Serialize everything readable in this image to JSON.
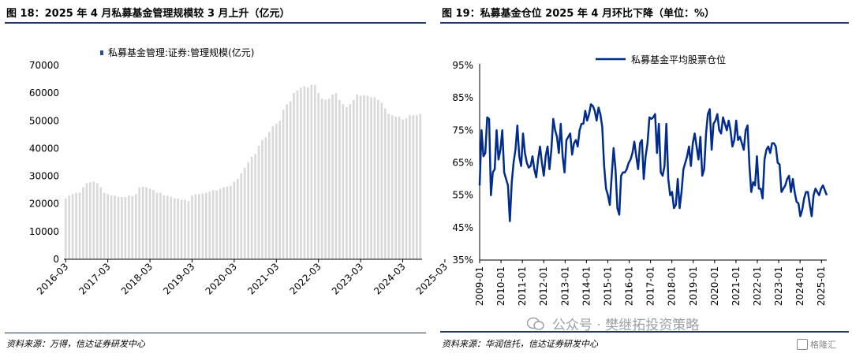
{
  "left_panel": {
    "title": "图 18：2025 年 4 月私募基金管理规模较 3 月上升（亿元）",
    "source": "资料来源：万得，信达证券研发中心"
  },
  "right_panel": {
    "title": "图 19：私募基金仓位 2025 年 4 月环比下降（单位：%）",
    "source": "资料来源：华润信托，信达证券研发中心"
  },
  "watermark": {
    "text": "公众号 · 樊继拓投资策略",
    "badge": "格隆汇"
  },
  "colors": {
    "bar": "#d9d9d9",
    "line": "#002b8f",
    "rule": "#1f3864",
    "legend_marker": "#1f4e9a"
  },
  "chart_data": [
    {
      "type": "bar",
      "title": "",
      "legend": "私募基金管理:证券:管理规模(亿元)",
      "legend_position": "top-center",
      "ylim": [
        0,
        70000
      ],
      "yticks": [
        0,
        10000,
        20000,
        30000,
        40000,
        50000,
        60000,
        70000
      ],
      "xticks": [
        "2016-03",
        "2017-03",
        "2018-03",
        "2019-03",
        "2020-03",
        "2021-03",
        "2022-03",
        "2023-03",
        "2024-03",
        "2025-03"
      ],
      "x_start": "2016-03",
      "x_end": "2025-04",
      "grid": false,
      "values": [
        22000,
        23000,
        23500,
        24000,
        24000,
        26000,
        27500,
        27800,
        28000,
        27500,
        26000,
        24000,
        23500,
        23000,
        23000,
        22500,
        22500,
        22500,
        23000,
        22800,
        23500,
        26000,
        26200,
        26000,
        25500,
        25000,
        24000,
        24000,
        23000,
        23000,
        22500,
        22000,
        22000,
        21500,
        21500,
        21000,
        23000,
        23500,
        23500,
        23800,
        24000,
        24500,
        25000,
        24800,
        25500,
        26000,
        26200,
        26500,
        28000,
        29000,
        31000,
        33000,
        35000,
        37000,
        38000,
        41000,
        43000,
        44000,
        46000,
        48000,
        49000,
        50000,
        54000,
        56000,
        57000,
        60000,
        61000,
        62000,
        62500,
        62000,
        63000,
        63000,
        60000,
        58000,
        57500,
        58000,
        59500,
        60000,
        57500,
        56000,
        55000,
        56000,
        57500,
        59500,
        59000,
        59200,
        59000,
        58500,
        58500,
        57500,
        56500,
        54500,
        52500,
        52000,
        51500,
        51500,
        50500,
        51000,
        52000,
        52000,
        52000,
        52500
      ]
    },
    {
      "type": "line",
      "series": [
        {
          "name": "私募基金平均股票仓位",
          "values": [
            58,
            75,
            67,
            68,
            79,
            78.5,
            55,
            62,
            63,
            75,
            66,
            69,
            75,
            62,
            60,
            58,
            47,
            59,
            65,
            69,
            76.5,
            67,
            64,
            74,
            68,
            65,
            63.5,
            64,
            67,
            63,
            60.5,
            66,
            70,
            65,
            61,
            67,
            70,
            63,
            69,
            78.5,
            75,
            73,
            68,
            77,
            67,
            62,
            72,
            73,
            74,
            67.5,
            71,
            72,
            70,
            75,
            77,
            77,
            81,
            78,
            80,
            83,
            82.5,
            81,
            78,
            82,
            80,
            76,
            64,
            57,
            55,
            52,
            61,
            69.5,
            63,
            51,
            49,
            61,
            62,
            62,
            63,
            65,
            66,
            68,
            71.5,
            67,
            63,
            71,
            72,
            60,
            67,
            71,
            79,
            78.5,
            79,
            80,
            68,
            77,
            62,
            61,
            64,
            77,
            60,
            55,
            56,
            51,
            52,
            60,
            51,
            56,
            63,
            65,
            67,
            70,
            64,
            71,
            74,
            70,
            66,
            73,
            61,
            63,
            74,
            80,
            81.5,
            69,
            77,
            78,
            80,
            75,
            74,
            79,
            77,
            75,
            78,
            75,
            70,
            72,
            78,
            72,
            73,
            71,
            69,
            75,
            76.5,
            64,
            56,
            59,
            58,
            67,
            57,
            57,
            54,
            66,
            69,
            70,
            68,
            71,
            71,
            70,
            65,
            64.5,
            56,
            57,
            58,
            60,
            61,
            56,
            60,
            56,
            53,
            52.5,
            48.5,
            50.5,
            54,
            56,
            56,
            52,
            48.5,
            55,
            57,
            56,
            55,
            57,
            58,
            56.5,
            55
          ]
        }
      ],
      "legend_position": "top-center",
      "ylim": [
        35,
        95
      ],
      "yticks": [
        "35%",
        "45%",
        "55%",
        "65%",
        "75%",
        "85%",
        "95%"
      ],
      "xticks": [
        "2009-01",
        "2010-01",
        "2011-01",
        "2012-01",
        "2013-01",
        "2014-01",
        "2015-01",
        "2016-01",
        "2017-01",
        "2018-01",
        "2019-01",
        "2020-01",
        "2021-01",
        "2022-01",
        "2023-01",
        "2024-01",
        "2025-01"
      ],
      "x_start": "2009-01",
      "x_end": "2025-04",
      "grid": false
    }
  ]
}
